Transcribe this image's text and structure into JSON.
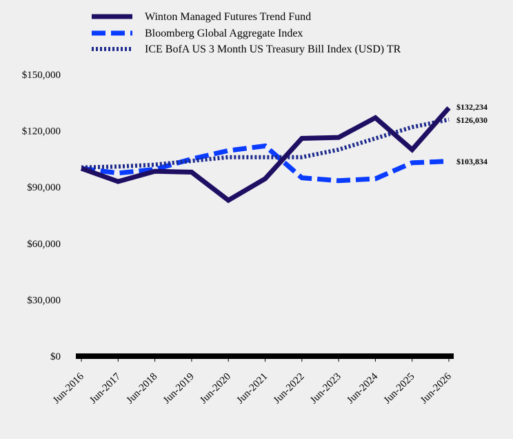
{
  "chart_data": {
    "type": "line",
    "title": "",
    "xlabel": "",
    "ylabel": "",
    "categories": [
      "Jun-2016",
      "Jun-2017",
      "Jun-2018",
      "Jun-2019",
      "Jun-2020",
      "Jun-2021",
      "Jun-2022",
      "Jun-2023",
      "Jun-2024",
      "Jun-2025",
      "Jun-2026"
    ],
    "ylim": [
      0,
      150000
    ],
    "yticks": [
      0,
      30000,
      60000,
      90000,
      120000,
      150000
    ],
    "ytick_labels": [
      "$0",
      "$30,000",
      "$60,000",
      "$90,000",
      "$120,000",
      "$150,000"
    ],
    "grid": false,
    "legend_position": "top-left",
    "series": [
      {
        "name": "Winton Managed Futures Trend Fund",
        "style": "solid",
        "color": "#1f0f63",
        "values": [
          100000,
          93000,
          98500,
          98000,
          83000,
          94500,
          116000,
          116500,
          127000,
          110000,
          132234
        ],
        "end_label": "$132,234"
      },
      {
        "name": "Bloomberg Global Aggregate Index",
        "style": "dashed",
        "color": "#0a3cff",
        "values": [
          100000,
          97500,
          99500,
          105000,
          109500,
          112000,
          95000,
          93500,
          94500,
          103000,
          103834
        ],
        "end_label": "$103,834"
      },
      {
        "name": "ICE BofA US 3 Month US Treasury Bill Index (USD) TR",
        "style": "dotted",
        "color": "#1d2a8c",
        "values": [
          100500,
          101000,
          102000,
          104000,
          106000,
          106000,
          106000,
          110000,
          116000,
          122000,
          126030
        ],
        "end_label": "$126,030"
      }
    ]
  }
}
